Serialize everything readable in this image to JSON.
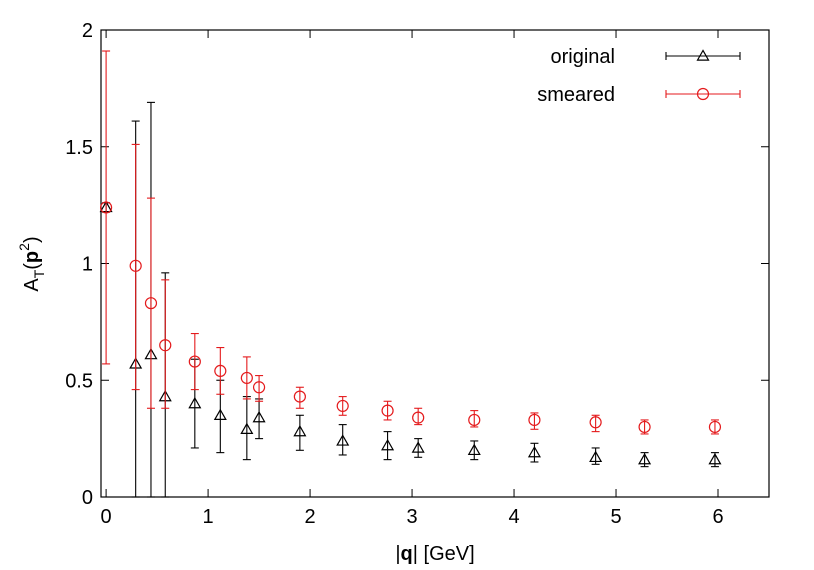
{
  "chart_data": {
    "type": "scatter",
    "xlabel": {
      "prefix": "|",
      "bold": "q",
      "suffix": "| [GeV]"
    },
    "ylabel": {
      "base": "A",
      "sub": "T",
      "open": "(",
      "bold": "p",
      "sup": "2",
      "close": ")"
    },
    "xlim": [
      -0.05,
      6.5
    ],
    "ylim": [
      0,
      2
    ],
    "xticks": [
      0,
      1,
      2,
      3,
      4,
      5,
      6
    ],
    "yticks": [
      0,
      0.5,
      1,
      1.5,
      2
    ],
    "ytick_labels": [
      "0",
      "0.5",
      "1",
      "1.5",
      "2"
    ],
    "grid": false,
    "legend_position": "top-right",
    "series": [
      {
        "name": "original",
        "marker": "triangle",
        "color": "#000000",
        "points": [
          {
            "x": 0.0,
            "y": 1.24,
            "lo": 1.22,
            "hi": 1.26
          },
          {
            "x": 0.29,
            "y": 0.57,
            "lo": 0.0,
            "hi": 1.61
          },
          {
            "x": 0.44,
            "y": 0.61,
            "lo": 0.0,
            "hi": 1.69
          },
          {
            "x": 0.58,
            "y": 0.43,
            "lo": 0.0,
            "hi": 0.96
          },
          {
            "x": 0.87,
            "y": 0.4,
            "lo": 0.21,
            "hi": 0.59
          },
          {
            "x": 1.12,
            "y": 0.35,
            "lo": 0.19,
            "hi": 0.5
          },
          {
            "x": 1.38,
            "y": 0.29,
            "lo": 0.16,
            "hi": 0.43
          },
          {
            "x": 1.5,
            "y": 0.34,
            "lo": 0.25,
            "hi": 0.42
          },
          {
            "x": 1.9,
            "y": 0.28,
            "lo": 0.2,
            "hi": 0.35
          },
          {
            "x": 2.32,
            "y": 0.24,
            "lo": 0.18,
            "hi": 0.31
          },
          {
            "x": 2.76,
            "y": 0.22,
            "lo": 0.16,
            "hi": 0.28
          },
          {
            "x": 3.06,
            "y": 0.21,
            "lo": 0.17,
            "hi": 0.25
          },
          {
            "x": 3.61,
            "y": 0.2,
            "lo": 0.16,
            "hi": 0.24
          },
          {
            "x": 4.2,
            "y": 0.19,
            "lo": 0.15,
            "hi": 0.23
          },
          {
            "x": 4.8,
            "y": 0.17,
            "lo": 0.14,
            "hi": 0.21
          },
          {
            "x": 5.28,
            "y": 0.16,
            "lo": 0.13,
            "hi": 0.19
          },
          {
            "x": 5.97,
            "y": 0.16,
            "lo": 0.13,
            "hi": 0.19
          }
        ]
      },
      {
        "name": "smeared",
        "marker": "circle",
        "color": "#e41a1c",
        "points": [
          {
            "x": 0.0,
            "y": 1.24,
            "lo": 0.57,
            "hi": 1.91
          },
          {
            "x": 0.29,
            "y": 0.99,
            "lo": 0.46,
            "hi": 1.51
          },
          {
            "x": 0.44,
            "y": 0.83,
            "lo": 0.38,
            "hi": 1.28
          },
          {
            "x": 0.58,
            "y": 0.65,
            "lo": 0.38,
            "hi": 0.93
          },
          {
            "x": 0.87,
            "y": 0.58,
            "lo": 0.46,
            "hi": 0.7
          },
          {
            "x": 1.12,
            "y": 0.54,
            "lo": 0.44,
            "hi": 0.64
          },
          {
            "x": 1.38,
            "y": 0.51,
            "lo": 0.42,
            "hi": 0.6
          },
          {
            "x": 1.5,
            "y": 0.47,
            "lo": 0.41,
            "hi": 0.52
          },
          {
            "x": 1.9,
            "y": 0.43,
            "lo": 0.38,
            "hi": 0.47
          },
          {
            "x": 2.32,
            "y": 0.39,
            "lo": 0.35,
            "hi": 0.43
          },
          {
            "x": 2.76,
            "y": 0.37,
            "lo": 0.33,
            "hi": 0.41
          },
          {
            "x": 3.06,
            "y": 0.34,
            "lo": 0.31,
            "hi": 0.38
          },
          {
            "x": 3.61,
            "y": 0.33,
            "lo": 0.3,
            "hi": 0.37
          },
          {
            "x": 4.2,
            "y": 0.33,
            "lo": 0.29,
            "hi": 0.36
          },
          {
            "x": 4.8,
            "y": 0.32,
            "lo": 0.28,
            "hi": 0.35
          },
          {
            "x": 5.28,
            "y": 0.3,
            "lo": 0.27,
            "hi": 0.33
          },
          {
            "x": 5.97,
            "y": 0.3,
            "lo": 0.27,
            "hi": 0.33
          }
        ]
      }
    ]
  }
}
